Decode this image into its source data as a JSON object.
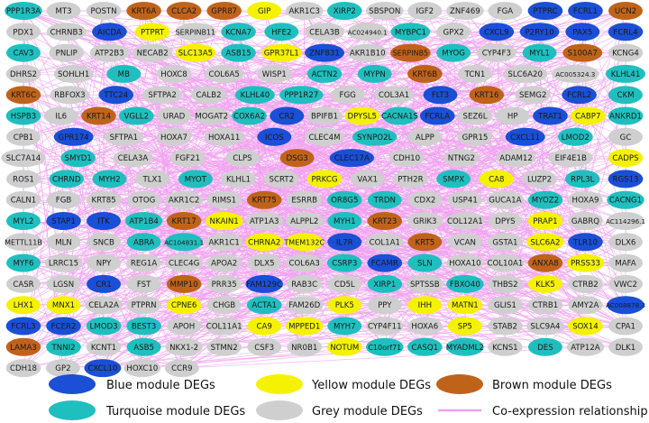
{
  "figure": {
    "edge_color": "#f1a0f0",
    "node_colors": {
      "blue": "#1a4fd6",
      "yellow": "#f5f200",
      "brown": "#c0631a",
      "turquoise": "#1fbfbf",
      "grey": "#cfcfcf"
    },
    "rows": [
      [
        [
          "PPP1R3A",
          "t"
        ],
        [
          "MT3",
          "g"
        ],
        [
          "POSTN",
          "g"
        ],
        [
          "KRT6A",
          "r"
        ],
        [
          "CLCA2",
          "r"
        ],
        [
          "GPR87",
          "r"
        ],
        [
          "GIP",
          "y"
        ],
        [
          "AKR1C3",
          "g"
        ],
        [
          "XIRP2",
          "t"
        ],
        [
          "SBSPON",
          "g"
        ],
        [
          "IGF2",
          "g"
        ],
        [
          "ZNF469",
          "g"
        ],
        [
          "FGA",
          "g"
        ],
        [
          "PTPRC",
          "b"
        ],
        [
          "FCRL1",
          "b"
        ],
        [
          "UCN2",
          "r"
        ]
      ],
      [
        [
          "PDX1",
          "g"
        ],
        [
          "CHRNB3",
          "g"
        ],
        [
          "AICDA",
          "b"
        ],
        [
          "PTPRT",
          "y"
        ],
        [
          "SERPINB11",
          "g"
        ],
        [
          "KCNA7",
          "t"
        ],
        [
          "HFE2",
          "t"
        ],
        [
          "CELA3B",
          "g"
        ],
        [
          "AC024940.1",
          "g"
        ],
        [
          "MYBPC1",
          "t"
        ],
        [
          "GPX2",
          "g"
        ],
        [
          "CXCL9",
          "b"
        ],
        [
          "P2RY10",
          "b"
        ],
        [
          "PAX5",
          "b"
        ],
        [
          "FCRL4",
          "b"
        ]
      ],
      [
        [
          "CAV3",
          "t"
        ],
        [
          "PNLIP",
          "g"
        ],
        [
          "ATP2B3",
          "g"
        ],
        [
          "NECAB2",
          "g"
        ],
        [
          "SLC13A5",
          "y"
        ],
        [
          "ASB15",
          "t"
        ],
        [
          "GPR37L1",
          "y"
        ],
        [
          "ZNF831",
          "b"
        ],
        [
          "AKR1B10",
          "g"
        ],
        [
          "SERPINB5",
          "r"
        ],
        [
          "MYOG",
          "t"
        ],
        [
          "CYP4F3",
          "g"
        ],
        [
          "MYL1",
          "t"
        ],
        [
          "S100A7",
          "r"
        ],
        [
          "KCNG4",
          "g"
        ]
      ],
      [
        [
          "DHRS2",
          "g"
        ],
        [
          "SOHLH1",
          "g"
        ],
        [
          "MB",
          "t"
        ],
        [
          "HOXC8",
          "g"
        ],
        [
          "COL6A5",
          "g"
        ],
        [
          "WISP1",
          "g"
        ],
        [
          "ACTN2",
          "t"
        ],
        [
          "MYPN",
          "t"
        ],
        [
          "KRT6B",
          "r"
        ],
        [
          "TCN1",
          "g"
        ],
        [
          "SLC6A20",
          "g"
        ],
        [
          "AC005324.3",
          "g"
        ],
        [
          "KLHL41",
          "t"
        ]
      ],
      [
        [
          "KRT6C",
          "r"
        ],
        [
          "RBFOX3",
          "g"
        ],
        [
          "TTC24",
          "b"
        ],
        [
          "SFTPA2",
          "g"
        ],
        [
          "CALB2",
          "g"
        ],
        [
          "KLHL40",
          "t"
        ],
        [
          "PPP1R27",
          "t"
        ],
        [
          "FGG",
          "g"
        ],
        [
          "COL3A1",
          "g"
        ],
        [
          "FLT3",
          "b"
        ],
        [
          "KRT16",
          "r"
        ],
        [
          "SEMG2",
          "g"
        ],
        [
          "FCRL2",
          "b"
        ],
        [
          "CKM",
          "t"
        ]
      ],
      [
        [
          "HSPB3",
          "t"
        ],
        [
          "IL6",
          "g"
        ],
        [
          "KRT14",
          "r"
        ],
        [
          "VGLL2",
          "t"
        ],
        [
          "URAD",
          "g"
        ],
        [
          "MOGAT2",
          "g"
        ],
        [
          "COX6A2",
          "t"
        ],
        [
          "CR2",
          "b"
        ],
        [
          "BPIFB1",
          "g"
        ],
        [
          "DPYSL5",
          "y"
        ],
        [
          "CACNA1S",
          "t"
        ],
        [
          "FCRLA",
          "b"
        ],
        [
          "SEZ6L",
          "g"
        ],
        [
          "HP",
          "g"
        ],
        [
          "TRAT1",
          "b"
        ],
        [
          "CABP7",
          "y"
        ],
        [
          "ANKRD1",
          "t"
        ]
      ],
      [
        [
          "CPB1",
          "g"
        ],
        [
          "GPR174",
          "b"
        ],
        [
          "SFTPA1",
          "g"
        ],
        [
          "HOXA7",
          "g"
        ],
        [
          "HOXA11",
          "g"
        ],
        [
          "ICOS",
          "b"
        ],
        [
          "CLEC4M",
          "g"
        ],
        [
          "SYNPO2L",
          "t"
        ],
        [
          "ALPP",
          "g"
        ],
        [
          "GPR15",
          "g"
        ],
        [
          "CXCL11",
          "b"
        ],
        [
          "LMOD2",
          "t"
        ],
        [
          "GC",
          "g"
        ]
      ],
      [
        [
          "SLC7A14",
          "g"
        ],
        [
          "SMYD1",
          "t"
        ],
        [
          "CELA3A",
          "g"
        ],
        [
          "FGF21",
          "g"
        ],
        [
          "CLPS",
          "g"
        ],
        [
          "DSG3",
          "r"
        ],
        [
          "CLEC17A",
          "b"
        ],
        [
          "CDH10",
          "g"
        ],
        [
          "NTNG2",
          "g"
        ],
        [
          "ADAM12",
          "g"
        ],
        [
          "EIF4E1B",
          "g"
        ],
        [
          "CADPS",
          "y"
        ]
      ],
      [
        [
          "ROS1",
          "g"
        ],
        [
          "CHRND",
          "t"
        ],
        [
          "MYH2",
          "t"
        ],
        [
          "TLX1",
          "g"
        ],
        [
          "MYOT",
          "t"
        ],
        [
          "KLHL1",
          "g"
        ],
        [
          "SCRT2",
          "g"
        ],
        [
          "PRKCG",
          "y"
        ],
        [
          "VAX1",
          "g"
        ],
        [
          "PTH2R",
          "g"
        ],
        [
          "SMPX",
          "t"
        ],
        [
          "CA8",
          "y"
        ],
        [
          "LUZP2",
          "g"
        ],
        [
          "RPL3L",
          "t"
        ],
        [
          "RGS13",
          "b"
        ]
      ],
      [
        [
          "CALN1",
          "g"
        ],
        [
          "FGB",
          "g"
        ],
        [
          "KRT85",
          "g"
        ],
        [
          "OTOG",
          "g"
        ],
        [
          "AKR1C2",
          "g"
        ],
        [
          "RIMS1",
          "g"
        ],
        [
          "KRT75",
          "r"
        ],
        [
          "ESRRB",
          "g"
        ],
        [
          "OR8G5",
          "t"
        ],
        [
          "TRDN",
          "t"
        ],
        [
          "CDX2",
          "g"
        ],
        [
          "USP41",
          "g"
        ],
        [
          "GUCA1A",
          "g"
        ],
        [
          "MYOZ2",
          "t"
        ],
        [
          "HOXA9",
          "g"
        ],
        [
          "CACNG1",
          "t"
        ]
      ],
      [
        [
          "MYL2",
          "t"
        ],
        [
          "STAP1",
          "b"
        ],
        [
          "ITK",
          "b"
        ],
        [
          "ATP1B4",
          "t"
        ],
        [
          "KRT17",
          "r"
        ],
        [
          "NKAIN1",
          "y"
        ],
        [
          "ATP1A3",
          "g"
        ],
        [
          "ALPPL2",
          "g"
        ],
        [
          "MYH1",
          "t"
        ],
        [
          "KRT23",
          "r"
        ],
        [
          "GRIK3",
          "g"
        ],
        [
          "COL12A1",
          "g"
        ],
        [
          "DPYS",
          "g"
        ],
        [
          "PRAP1",
          "y"
        ],
        [
          "GABRQ",
          "g"
        ],
        [
          "AC114296.1",
          "g"
        ]
      ],
      [
        [
          "METTL11B",
          "g"
        ],
        [
          "MLN",
          "g"
        ],
        [
          "SNCB",
          "g"
        ],
        [
          "ABRA",
          "t"
        ],
        [
          "AC104831.1",
          "t"
        ],
        [
          "AKR1C1",
          "g"
        ],
        [
          "CHRNA2",
          "y"
        ],
        [
          "TMEM132C",
          "y"
        ],
        [
          "IL7R",
          "b"
        ],
        [
          "COL1A1",
          "g"
        ],
        [
          "KRT5",
          "r"
        ],
        [
          "VCAN",
          "g"
        ],
        [
          "GSTA1",
          "g"
        ],
        [
          "SLC6A2",
          "y"
        ],
        [
          "TLR10",
          "b"
        ],
        [
          "DLX6",
          "g"
        ]
      ],
      [
        [
          "MYF6",
          "t"
        ],
        [
          "LRRC15",
          "g"
        ],
        [
          "NPY",
          "g"
        ],
        [
          "REG1A",
          "g"
        ],
        [
          "CLEC4G",
          "g"
        ],
        [
          "APOA2",
          "g"
        ],
        [
          "DLX5",
          "g"
        ],
        [
          "COL6A3",
          "g"
        ],
        [
          "CSRP3",
          "t"
        ],
        [
          "FCAMR",
          "b"
        ],
        [
          "SLN",
          "t"
        ],
        [
          "HOXA10",
          "g"
        ],
        [
          "COL10A1",
          "g"
        ],
        [
          "ANXA8",
          "r"
        ],
        [
          "PRSS33",
          "y"
        ],
        [
          "MAFA",
          "g"
        ]
      ],
      [
        [
          "CASR",
          "g"
        ],
        [
          "LGSN",
          "g"
        ],
        [
          "CR1",
          "b"
        ],
        [
          "FST",
          "g"
        ],
        [
          "MMP10",
          "r"
        ],
        [
          "PRR35",
          "g"
        ],
        [
          "FAM129C",
          "b"
        ],
        [
          "RAB3C",
          "g"
        ],
        [
          "CD5L",
          "g"
        ],
        [
          "XIRP1",
          "t"
        ],
        [
          "SPTSSB",
          "g"
        ],
        [
          "FBXO40",
          "t"
        ],
        [
          "THBS2",
          "g"
        ],
        [
          "KLK5",
          "y"
        ],
        [
          "CTRB2",
          "g"
        ],
        [
          "VWC2",
          "g"
        ]
      ],
      [
        [
          "LHX1",
          "y"
        ],
        [
          "MNX1",
          "y"
        ],
        [
          "CELA2A",
          "g"
        ],
        [
          "PTPRN",
          "g"
        ],
        [
          "CPNE6",
          "y"
        ],
        [
          "CHGB",
          "g"
        ],
        [
          "ACTA1",
          "t"
        ],
        [
          "FAM26D",
          "g"
        ],
        [
          "PLK5",
          "y"
        ],
        [
          "PPY",
          "g"
        ],
        [
          "IHH",
          "y"
        ],
        [
          "MATN1",
          "y"
        ],
        [
          "GLIS1",
          "g"
        ],
        [
          "CTRB1",
          "g"
        ],
        [
          "AMY2A",
          "g"
        ],
        [
          "AC008878.3",
          "b"
        ]
      ],
      [
        [
          "FCRL3",
          "b"
        ],
        [
          "FCER2",
          "b"
        ],
        [
          "LMOD3",
          "t"
        ],
        [
          "BEST3",
          "t"
        ],
        [
          "APOH",
          "g"
        ],
        [
          "COL11A1",
          "g"
        ],
        [
          "CA9",
          "y"
        ],
        [
          "MPPED1",
          "y"
        ],
        [
          "MYH7",
          "t"
        ],
        [
          "CYP4F11",
          "g"
        ],
        [
          "HOXA6",
          "g"
        ],
        [
          "SP5",
          "y"
        ],
        [
          "STAB2",
          "g"
        ],
        [
          "SLC9A4",
          "g"
        ],
        [
          "SOX14",
          "y"
        ],
        [
          "CPA1",
          "g"
        ]
      ],
      [
        [
          "LAMA3",
          "r"
        ],
        [
          "TNNI2",
          "t"
        ],
        [
          "KCNT1",
          "g"
        ],
        [
          "ASB5",
          "t"
        ],
        [
          "NKX1-2",
          "g"
        ],
        [
          "STMN2",
          "g"
        ],
        [
          "CSF3",
          "g"
        ],
        [
          "NR0B1",
          "g"
        ],
        [
          "NOTUM",
          "y"
        ],
        [
          "C10orf71",
          "t"
        ],
        [
          "CASQ1",
          "t"
        ],
        [
          "MYADML2",
          "t"
        ],
        [
          "KCNS1",
          "g"
        ],
        [
          "DES",
          "t"
        ],
        [
          "ATP12A",
          "g"
        ],
        [
          "DLK1",
          "g"
        ]
      ],
      [
        [
          "CDH18",
          "g"
        ],
        [
          "GP2",
          "g"
        ],
        [
          "CXCL10",
          "b"
        ],
        [
          "HOXC10",
          "g"
        ],
        [
          "CCR9",
          "g"
        ]
      ]
    ],
    "legend": [
      {
        "color": "b",
        "label": "Blue module DEGs"
      },
      {
        "color": "y",
        "label": "Yellow module DEGs"
      },
      {
        "color": "r",
        "label": "Brown module DEGs"
      },
      {
        "color": "t",
        "label": "Turquoise module DEGs"
      },
      {
        "color": "g",
        "label": "Grey module DEGs"
      },
      {
        "color": "edge",
        "label": "Co-expression relationship"
      }
    ]
  }
}
